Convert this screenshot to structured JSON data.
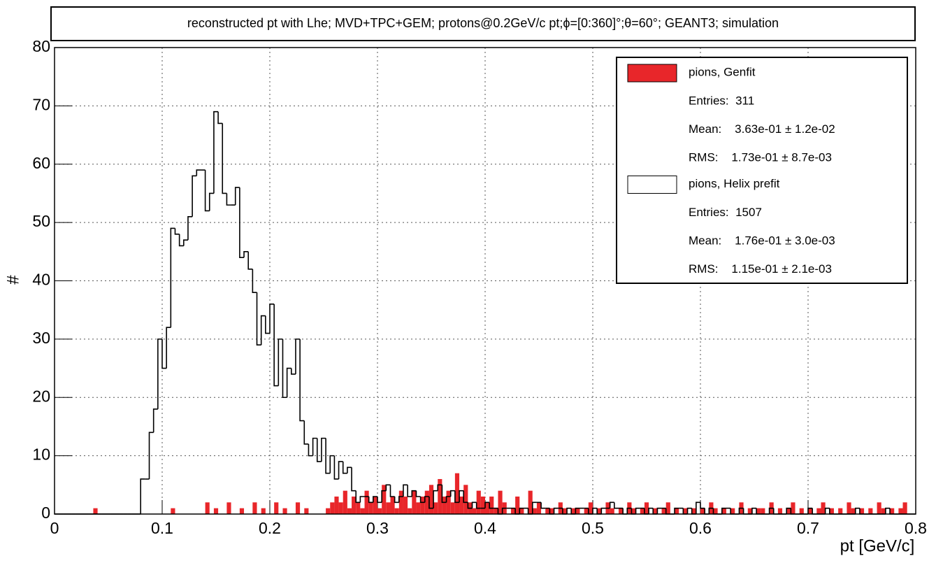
{
  "chart_data": {
    "type": "histogram",
    "title": "reconstructed pt with Lhe; MVD+TPC+GEM; protons@0.2GeV/c pt;ϕ=[0:360]°;θ=60°; GEANT3; simulation",
    "x_label": "pt [GeV/c]",
    "y_label": "#",
    "xlim": [
      0,
      0.8
    ],
    "ylim": [
      0,
      80
    ],
    "xticks": [
      0,
      0.1,
      0.2,
      0.3,
      0.4,
      0.5,
      0.6,
      0.7,
      0.8
    ],
    "yticks": [
      0,
      10,
      20,
      30,
      40,
      50,
      60,
      70,
      80
    ],
    "grid": true,
    "bins": [
      0,
      0.004,
      0.008,
      0.012,
      0.016,
      0.02,
      0.024,
      0.028,
      0.032,
      0.036,
      0.04,
      0.044,
      0.048,
      0.052,
      0.056,
      0.06,
      0.064,
      0.068,
      0.072,
      0.076,
      0.08,
      0.084,
      0.088,
      0.092,
      0.096,
      0.1,
      0.104,
      0.108,
      0.112,
      0.116,
      0.12,
      0.124,
      0.128,
      0.132,
      0.136,
      0.14,
      0.144,
      0.148,
      0.152,
      0.156,
      0.16,
      0.164,
      0.168,
      0.172,
      0.176,
      0.18,
      0.184,
      0.188,
      0.192,
      0.196,
      0.2,
      0.204,
      0.208,
      0.212,
      0.216,
      0.22,
      0.224,
      0.228,
      0.232,
      0.236,
      0.24,
      0.244,
      0.248,
      0.252,
      0.256,
      0.26,
      0.264,
      0.268,
      0.272,
      0.276,
      0.28,
      0.284,
      0.288,
      0.292,
      0.296,
      0.3,
      0.304,
      0.308,
      0.312,
      0.316,
      0.32,
      0.324,
      0.328,
      0.332,
      0.336,
      0.34,
      0.344,
      0.348,
      0.352,
      0.356,
      0.36,
      0.364,
      0.368,
      0.372,
      0.376,
      0.38,
      0.384,
      0.388,
      0.392,
      0.396,
      0.4,
      0.404,
      0.408,
      0.412,
      0.416,
      0.42,
      0.424,
      0.428,
      0.432,
      0.436,
      0.44,
      0.444,
      0.448,
      0.452,
      0.456,
      0.46,
      0.464,
      0.468,
      0.472,
      0.476,
      0.48,
      0.484,
      0.488,
      0.492,
      0.496,
      0.5,
      0.504,
      0.508,
      0.512,
      0.516,
      0.52,
      0.524,
      0.528,
      0.532,
      0.536,
      0.54,
      0.544,
      0.548,
      0.552,
      0.556,
      0.56,
      0.564,
      0.568,
      0.572,
      0.576,
      0.58,
      0.584,
      0.588,
      0.592,
      0.596,
      0.6,
      0.604,
      0.608,
      0.612,
      0.616,
      0.62,
      0.624,
      0.628,
      0.632,
      0.636,
      0.64,
      0.644,
      0.648,
      0.652,
      0.656,
      0.66,
      0.664,
      0.668,
      0.672,
      0.676,
      0.68,
      0.684,
      0.688,
      0.692,
      0.696,
      0.7,
      0.704,
      0.708,
      0.712,
      0.716,
      0.72,
      0.724,
      0.728,
      0.732,
      0.736,
      0.74,
      0.744,
      0.748,
      0.752,
      0.756,
      0.76,
      0.764,
      0.768,
      0.772,
      0.776,
      0.78,
      0.784,
      0.788,
      0.792,
      0.796,
      0.8
    ],
    "series": [
      {
        "name": "pions, Genfit",
        "color": "#e8262a",
        "fill": true,
        "stats": [
          "Entries:  311",
          "Mean:    3.63e-01 ± 1.2e-02",
          "RMS:    1.73e-01 ± 8.7e-03"
        ],
        "values": [
          0,
          0,
          0,
          0,
          0,
          0,
          0,
          0,
          0,
          1,
          0,
          0,
          0,
          0,
          0,
          0,
          0,
          0,
          0,
          0,
          0,
          0,
          0,
          0,
          0,
          0,
          0,
          1,
          0,
          0,
          0,
          0,
          0,
          0,
          0,
          2,
          0,
          1,
          0,
          0,
          2,
          0,
          0,
          1,
          0,
          0,
          2,
          0,
          1,
          0,
          0,
          2,
          0,
          1,
          0,
          0,
          2,
          0,
          1,
          0,
          0,
          0,
          0,
          1,
          2,
          3,
          2,
          4,
          1,
          3,
          2,
          1,
          4,
          2,
          3,
          1,
          5,
          2,
          3,
          1,
          4,
          3,
          1,
          4,
          2,
          3,
          4,
          5,
          2,
          6,
          3,
          4,
          2,
          7,
          3,
          5,
          2,
          1,
          4,
          3,
          2,
          3,
          1,
          4,
          2,
          0,
          1,
          3,
          1,
          0,
          4,
          1,
          2,
          0,
          1,
          1,
          0,
          2,
          1,
          0,
          1,
          1,
          0,
          1,
          2,
          0,
          1,
          0,
          2,
          1,
          0,
          1,
          0,
          2,
          1,
          0,
          1,
          2,
          0,
          1,
          0,
          1,
          2,
          0,
          1,
          0,
          1,
          0,
          1,
          0,
          1,
          0,
          2,
          1,
          0,
          1,
          0,
          1,
          0,
          2,
          0,
          1,
          0,
          1,
          1,
          0,
          2,
          0,
          1,
          0,
          1,
          2,
          0,
          1,
          0,
          1,
          0,
          1,
          2,
          0,
          1,
          0,
          1,
          0,
          2,
          1,
          0,
          1,
          0,
          1,
          0,
          2,
          1,
          0,
          1,
          0,
          1,
          2,
          0,
          0
        ]
      },
      {
        "name": "pions, Helix prefit",
        "color": "#000000",
        "fill": false,
        "stats": [
          "Entries:  1507",
          "Mean:    1.76e-01 ± 3.0e-03",
          "RMS:    1.15e-01 ± 2.1e-03"
        ],
        "values": [
          0,
          0,
          0,
          0,
          0,
          0,
          0,
          0,
          0,
          0,
          0,
          0,
          0,
          0,
          0,
          0,
          0,
          0,
          0,
          0,
          6,
          6,
          14,
          18,
          30,
          25,
          32,
          49,
          48,
          46,
          47,
          51,
          58,
          59,
          59,
          52,
          55,
          69,
          67,
          55,
          53,
          53,
          56,
          44,
          45,
          42,
          38,
          29,
          34,
          31,
          36,
          22,
          30,
          20,
          25,
          24,
          30,
          16,
          12,
          10,
          13,
          9,
          13,
          7,
          10,
          6,
          9,
          7,
          8,
          4,
          2,
          3,
          3,
          2,
          3,
          2,
          4,
          5,
          3,
          2,
          3,
          5,
          3,
          4,
          3,
          2,
          3,
          1,
          4,
          5,
          2,
          3,
          4,
          2,
          4,
          2,
          1,
          2,
          1,
          1,
          2,
          1,
          1,
          0,
          1,
          1,
          1,
          0,
          1,
          1,
          0,
          2,
          2,
          1,
          1,
          0,
          1,
          1,
          0,
          1,
          0,
          1,
          1,
          1,
          0,
          1,
          0,
          1,
          1,
          2,
          1,
          1,
          0,
          1,
          0,
          1,
          1,
          0,
          1,
          0,
          1,
          1,
          0,
          0,
          1,
          1,
          0,
          1,
          0,
          2,
          1,
          0,
          1,
          0,
          0,
          1,
          1,
          0,
          0,
          1,
          0,
          0,
          1,
          0,
          0,
          0,
          1,
          0,
          0,
          0,
          1,
          0,
          0,
          0,
          0,
          1,
          0,
          0,
          0,
          1,
          0,
          0,
          0,
          0,
          0,
          0,
          1,
          0,
          0,
          0,
          0,
          0,
          0,
          1,
          0,
          0,
          0,
          0,
          0,
          0
        ]
      }
    ]
  }
}
